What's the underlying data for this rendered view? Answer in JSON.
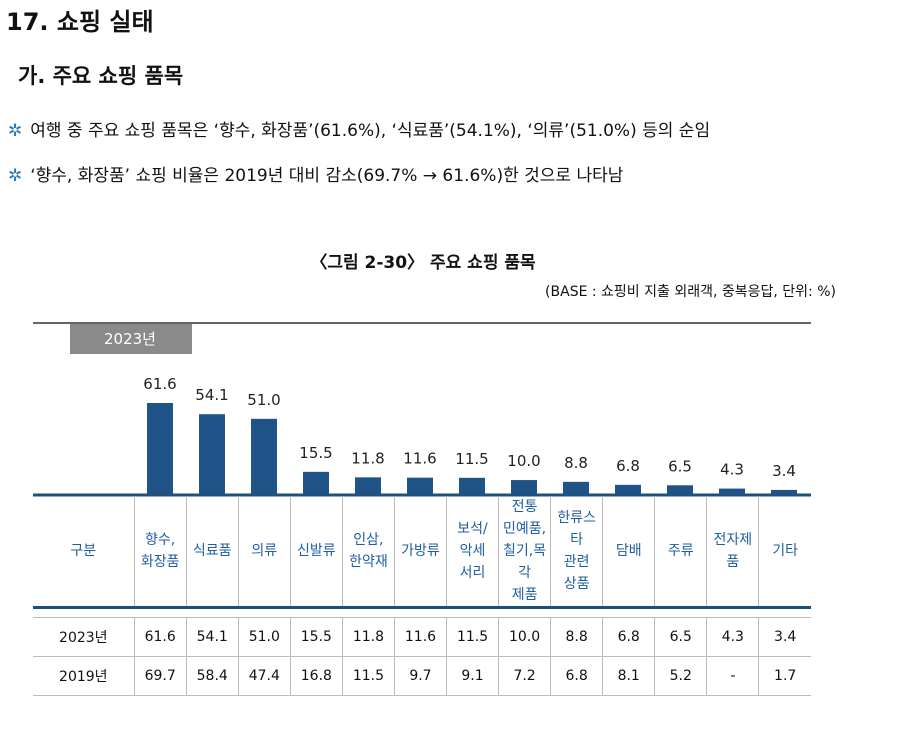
{
  "section_title": "17. 쇼핑 실태",
  "subsection_title": "가. 주요 쇼핑 품목",
  "bullet_symbol": "✲",
  "bullets": [
    "여행 중 주요 쇼핑 품목은 ‘향수, 화장품’(61.6%), ‘식료품’(54.1%), ‘의류’(51.0%) 등의 순임",
    "‘향수, 화장품’ 쇼핑 비율은 2019년 대비 감소(69.7% → 61.6%)한 것으로 나타남"
  ],
  "figure_title": "〈그림 2-30〉 주요 쇼핑 품목",
  "figure_note": "(BASE : 쇼핑비 지출 외래객, 중복응답, 단위: %)",
  "year_tab": "2023년",
  "colors": {
    "bar": "#1f5286",
    "axis": "#1f4e79",
    "header_text": "#1f5fa0",
    "tab": "#8a8a8a"
  },
  "chart_data": {
    "type": "bar",
    "title": "〈그림 2-30〉 주요 쇼핑 품목",
    "ylabel": "%",
    "ylim": [
      0,
      75
    ],
    "categories": [
      "향수, 화장품",
      "식료품",
      "의류",
      "신발류",
      "인삼, 한약재",
      "가방류",
      "보석/ 악세서리",
      "전통 민예품, 칠기,목각 제품",
      "한류스타 관련 상품",
      "담배",
      "주류",
      "전자제품",
      "기타"
    ],
    "series": [
      {
        "name": "2023년",
        "values": [
          61.6,
          54.1,
          51.0,
          15.5,
          11.8,
          11.6,
          11.5,
          10.0,
          8.8,
          6.8,
          6.5,
          4.3,
          3.4
        ],
        "labels": [
          "61.6",
          "54.1",
          "51.0",
          "15.5",
          "11.8",
          "11.6",
          "11.5",
          "10.0",
          "8.8",
          "6.8",
          "6.5",
          "4.3",
          "3.4"
        ]
      }
    ]
  },
  "table": {
    "corner": "구분",
    "headers": [
      [
        "향수,",
        "화장품"
      ],
      [
        "식료품"
      ],
      [
        "의류"
      ],
      [
        "신발류"
      ],
      [
        "인삼,",
        "한약재"
      ],
      [
        "가방류"
      ],
      [
        "보석/",
        "악세",
        "서리"
      ],
      [
        "전통",
        "민예품,",
        "칠기,목각",
        "제품"
      ],
      [
        "한류스타",
        "관련",
        "상품"
      ],
      [
        "담배"
      ],
      [
        "주류"
      ],
      [
        "전자제품"
      ],
      [
        "기타"
      ]
    ],
    "rows": [
      {
        "label": "2023년",
        "values": [
          "61.6",
          "54.1",
          "51.0",
          "15.5",
          "11.8",
          "11.6",
          "11.5",
          "10.0",
          "8.8",
          "6.8",
          "6.5",
          "4.3",
          "3.4"
        ]
      },
      {
        "label": "2019년",
        "values": [
          "69.7",
          "58.4",
          "47.4",
          "16.8",
          "11.5",
          "9.7",
          "9.1",
          "7.2",
          "6.8",
          "8.1",
          "5.2",
          "-",
          "1.7"
        ]
      }
    ]
  }
}
